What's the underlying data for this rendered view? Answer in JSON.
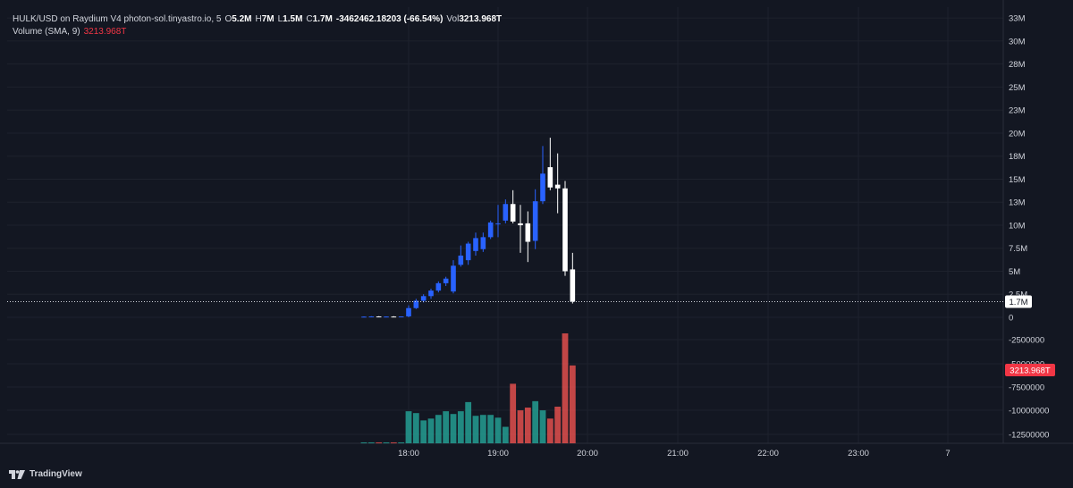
{
  "legend": {
    "symbol": "HULK/USD on Raydium V4 photon-sol.tinyastro.io, 5",
    "o_label": "O",
    "o_value": "5.2M",
    "h_label": "H",
    "h_value": "7M",
    "l_label": "L",
    "l_value": "1.5M",
    "c_label": "C",
    "c_value": "1.7M",
    "change": "-3462462.18203 (-66.54%)",
    "vol_label": "Vol",
    "vol_value": "3213.968T",
    "volume_indicator": "Volume (SMA, 9)",
    "volume_indicator_value": "3213.968T"
  },
  "branding": {
    "name": "TradingView"
  },
  "colors": {
    "background": "#131722",
    "grid": "#1e222d",
    "up_candle": "#2962ff",
    "down_candle": "#ffffff",
    "up_volume": "#26a69a",
    "down_volume": "#ef5350",
    "last_price_badge_bg": "#ffffff",
    "volume_badge_bg": "#f23645"
  },
  "chart_data": [
    {
      "type": "candlestick",
      "interval": "5",
      "x_ticks": [
        "18:00",
        "19:00",
        "20:00",
        "21:00",
        "22:00",
        "23:00",
        "7"
      ],
      "y_ticks": [
        "0",
        "2.5M",
        "5M",
        "7.5M",
        "10M",
        "13M",
        "15M",
        "18M",
        "20M",
        "23M",
        "25M",
        "28M",
        "30M",
        "33M"
      ],
      "y_tick_values": [
        0,
        2.5,
        5,
        7.5,
        10,
        12.5,
        15,
        17.5,
        20,
        22.5,
        25,
        27.5,
        30,
        32.5
      ],
      "ylim": [
        0,
        33.5
      ],
      "unit": "M",
      "last_price": "1.7M",
      "start_time": "17:30",
      "bar_minutes": 5,
      "candles": [
        {
          "o": 0.05,
          "h": 0.1,
          "l": 0.0,
          "c": 0.07
        },
        {
          "o": 0.07,
          "h": 0.12,
          "l": 0.02,
          "c": 0.09
        },
        {
          "o": 0.09,
          "h": 0.12,
          "l": 0.04,
          "c": 0.06
        },
        {
          "o": 0.06,
          "h": 0.1,
          "l": 0.02,
          "c": 0.08
        },
        {
          "o": 0.08,
          "h": 0.12,
          "l": 0.04,
          "c": 0.06
        },
        {
          "o": 0.06,
          "h": 0.1,
          "l": 0.02,
          "c": 0.09
        },
        {
          "o": 0.1,
          "h": 1.3,
          "l": 0.0,
          "c": 1.0
        },
        {
          "o": 1.0,
          "h": 2.0,
          "l": 0.9,
          "c": 1.8
        },
        {
          "o": 1.8,
          "h": 2.5,
          "l": 1.6,
          "c": 2.3
        },
        {
          "o": 2.3,
          "h": 3.1,
          "l": 2.0,
          "c": 2.9
        },
        {
          "o": 2.9,
          "h": 3.9,
          "l": 2.7,
          "c": 3.7
        },
        {
          "o": 3.7,
          "h": 4.4,
          "l": 3.4,
          "c": 4.2
        },
        {
          "o": 2.8,
          "h": 6.2,
          "l": 2.6,
          "c": 5.6
        },
        {
          "o": 5.7,
          "h": 7.8,
          "l": 5.5,
          "c": 6.7
        },
        {
          "o": 6.2,
          "h": 8.2,
          "l": 5.7,
          "c": 8.0
        },
        {
          "o": 7.2,
          "h": 9.2,
          "l": 6.7,
          "c": 8.6
        },
        {
          "o": 7.4,
          "h": 9.2,
          "l": 7.1,
          "c": 8.7
        },
        {
          "o": 8.7,
          "h": 10.5,
          "l": 8.5,
          "c": 10.3
        },
        {
          "o": 10.2,
          "h": 12.2,
          "l": 8.7,
          "c": 10.2
        },
        {
          "o": 10.5,
          "h": 12.8,
          "l": 10.2,
          "c": 12.3
        },
        {
          "o": 12.3,
          "h": 13.8,
          "l": 10.2,
          "c": 10.4
        },
        {
          "o": 10.2,
          "h": 12.2,
          "l": 7.0,
          "c": 10.0
        },
        {
          "o": 10.2,
          "h": 11.5,
          "l": 6.0,
          "c": 8.2
        },
        {
          "o": 8.3,
          "h": 13.9,
          "l": 7.4,
          "c": 12.6
        },
        {
          "o": 12.6,
          "h": 18.6,
          "l": 12.3,
          "c": 15.6
        },
        {
          "o": 16.3,
          "h": 19.5,
          "l": 13.8,
          "c": 14.1
        },
        {
          "o": 14.4,
          "h": 17.8,
          "l": 11.3,
          "c": 14.0
        },
        {
          "o": 14.0,
          "h": 14.8,
          "l": 4.5,
          "c": 5.0
        },
        {
          "o": 5.2,
          "h": 7.0,
          "l": 1.5,
          "c": 1.7
        }
      ]
    },
    {
      "type": "bar",
      "name": "Volume",
      "y_ticks": [
        "-2500000",
        "-5000000",
        "-7500000",
        "-10000000",
        "-12500000"
      ],
      "y_tick_values": [
        -2500000,
        -5000000,
        -7500000,
        -10000000,
        -12500000
      ],
      "last_value": "3213.968T",
      "values": [
        1,
        1,
        1,
        1,
        1,
        1,
        35,
        33,
        25,
        27,
        31,
        35,
        32,
        35,
        45,
        30,
        31,
        31,
        28,
        18,
        65,
        36,
        39,
        46,
        36,
        27,
        40,
        120,
        85
      ]
    }
  ]
}
